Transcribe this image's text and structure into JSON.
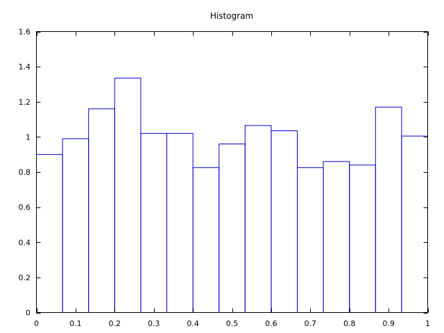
{
  "chart_data": {
    "type": "bar",
    "title": "Histogram",
    "xlabel": "",
    "ylabel": "",
    "xlim": [
      0,
      1
    ],
    "ylim": [
      0,
      1.6
    ],
    "grid": false,
    "legend": "none",
    "bar_color": "#0000cc",
    "bins": [
      {
        "x0": 0.0,
        "x1": 0.0667,
        "value": 0.9
      },
      {
        "x0": 0.0667,
        "x1": 0.1333,
        "value": 0.99
      },
      {
        "x0": 0.1333,
        "x1": 0.2,
        "value": 1.16
      },
      {
        "x0": 0.2,
        "x1": 0.2667,
        "value": 1.335
      },
      {
        "x0": 0.2667,
        "x1": 0.3333,
        "value": 1.02
      },
      {
        "x0": 0.3333,
        "x1": 0.4,
        "value": 1.02
      },
      {
        "x0": 0.4,
        "x1": 0.4667,
        "value": 0.825
      },
      {
        "x0": 0.4667,
        "x1": 0.5333,
        "value": 0.96
      },
      {
        "x0": 0.5333,
        "x1": 0.6,
        "value": 1.065
      },
      {
        "x0": 0.6,
        "x1": 0.6667,
        "value": 1.035
      },
      {
        "x0": 0.6667,
        "x1": 0.7333,
        "value": 0.825
      },
      {
        "x0": 0.7333,
        "x1": 0.8,
        "value": 0.86
      },
      {
        "x0": 0.8,
        "x1": 0.8667,
        "value": 0.84
      },
      {
        "x0": 0.8667,
        "x1": 0.9333,
        "value": 1.17
      },
      {
        "x0": 0.9333,
        "x1": 1.0,
        "value": 1.005
      }
    ],
    "xticks": [
      "0",
      "0.1",
      "0.2",
      "0.3",
      "0.4",
      "0.5",
      "0.6",
      "0.7",
      "0.8",
      "0.9",
      "1"
    ],
    "yticks": [
      "0",
      "0.2",
      "0.4",
      "0.6",
      "0.8",
      "1",
      "1.2",
      "1.4",
      "1.6"
    ]
  }
}
